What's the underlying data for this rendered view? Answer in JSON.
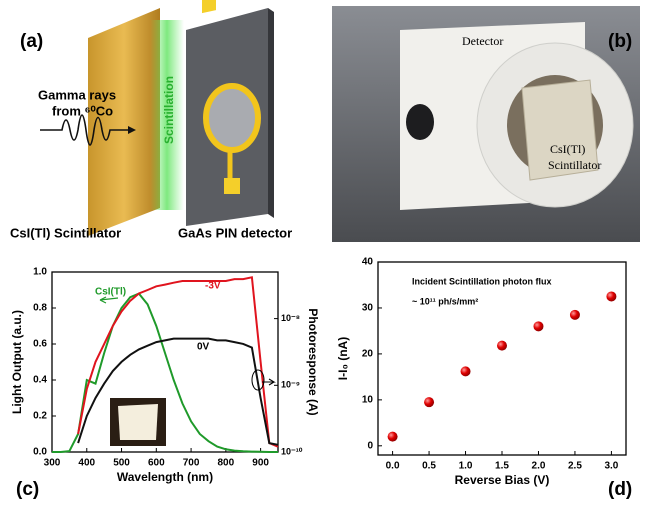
{
  "panels": {
    "a": {
      "label": "(a)",
      "source_line1": "Gamma rays",
      "source_line2": "from ⁶⁰Co",
      "glow": "Scintillation",
      "left_caption": "CsI(Tl) Scintillator",
      "right_caption": "GaAs PIN detector"
    },
    "b": {
      "label": "(b)",
      "detector": "Detector",
      "crystal_line1": "CsI(Tl)",
      "crystal_line2": "Scintillator"
    }
  },
  "chart_data": [
    {
      "type": "line",
      "label": "(c)",
      "xlabel": "Wavelength (nm)",
      "ylabel": "Light Output (a.u.)",
      "y2label": "Photoresponse (A)",
      "x": [
        300,
        325,
        350,
        375,
        400,
        425,
        450,
        475,
        500,
        525,
        550,
        575,
        600,
        625,
        650,
        675,
        700,
        725,
        750,
        775,
        800,
        825,
        850,
        875,
        900,
        925,
        950
      ],
      "xlim": [
        300,
        950
      ],
      "xticks": [
        300,
        400,
        500,
        600,
        700,
        800,
        900
      ],
      "ylim": [
        0,
        1
      ],
      "yticks": [
        {
          "value": 0,
          "label": "0.0"
        },
        0.2,
        0.4,
        0.6,
        0.8,
        {
          "value": 1,
          "label": "1.0"
        }
      ],
      "y2scale": "log",
      "y2lim": [
        1e-10,
        5e-08
      ],
      "y2ticks": [
        {
          "value": 1e-10,
          "label": "10⁻¹⁰"
        },
        {
          "value": 1e-09,
          "label": "10⁻⁹"
        },
        {
          "value": 1e-08,
          "label": "10⁻⁸"
        }
      ],
      "series": [
        {
          "name": "CsI(Tl)",
          "color": "#1f9a2a",
          "values": [
            0,
            0,
            0.005,
            0.1,
            0.4,
            0.38,
            0.55,
            0.7,
            0.8,
            0.86,
            0.88,
            0.82,
            0.7,
            0.55,
            0.4,
            0.27,
            0.17,
            0.1,
            0.06,
            0.03,
            0.015,
            0.008,
            0.004,
            0.002,
            0.001,
            0,
            0
          ]
        },
        {
          "name": "-3V",
          "color": "#e0141e",
          "axis": "y2",
          "values": [
            null,
            null,
            null,
            1.86e-10,
            8.81e-10,
            2.24e-09,
            4.17e-09,
            7.76e-09,
            1.28e-08,
            1.85e-08,
            2.38e-08,
            2.69e-08,
            3.05e-08,
            3.24e-08,
            3.45e-08,
            3.67e-08,
            3.67e-08,
            3.67e-08,
            3.67e-08,
            3.67e-08,
            3.67e-08,
            3.91e-08,
            3.91e-08,
            4.16e-08,
            2.24e-09,
            1.36e-10,
            1.2e-10
          ]
        },
        {
          "name": "0V",
          "color": "#111111",
          "axis": "y2",
          "values": [
            null,
            null,
            null,
            1.36e-10,
            3.47e-10,
            6.46e-10,
            1.06e-09,
            1.64e-09,
            2.24e-09,
            2.87e-09,
            3.46e-09,
            3.92e-09,
            4.44e-09,
            4.72e-09,
            5.02e-09,
            5.02e-09,
            5.02e-09,
            5.02e-09,
            5.02e-09,
            4.72e-09,
            4.72e-09,
            4.44e-09,
            4.17e-09,
            3.68e-09,
            6.46e-10,
            1.36e-10,
            1.28e-10
          ]
        }
      ]
    },
    {
      "type": "scatter",
      "label": "(d)",
      "xlabel": "Reverse Bias (V)",
      "ylabel": "I-I₀ (nA)",
      "annotations": [
        "Incident Scintillation photon flux",
        "~ 10¹¹ ph/s/mm²"
      ],
      "x": [
        0,
        0.5,
        1,
        1.5,
        2,
        2.5,
        3
      ],
      "values": [
        2,
        9.5,
        16.2,
        21.8,
        26,
        28.5,
        32.5
      ],
      "color": "#e00000",
      "xlim": [
        -0.2,
        3.2
      ],
      "xticks": [
        {
          "value": 0,
          "label": "0.0"
        },
        0.5,
        {
          "value": 1,
          "label": "1.0"
        },
        1.5,
        {
          "value": 2,
          "label": "2.0"
        },
        2.5,
        {
          "value": 3,
          "label": "3.0"
        }
      ],
      "ylim": [
        -2,
        40
      ],
      "yticks": [
        0,
        10,
        20,
        30,
        40
      ]
    }
  ]
}
